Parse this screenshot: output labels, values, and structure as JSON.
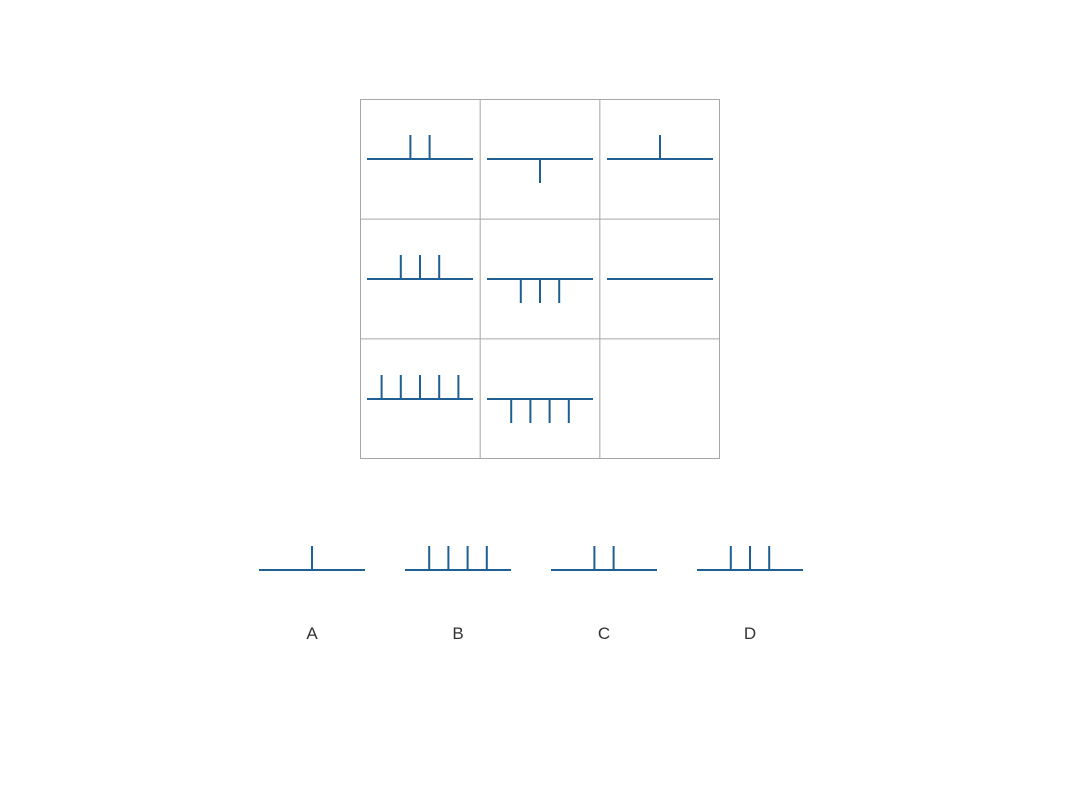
{
  "colors": {
    "stroke": "#1f5f92",
    "grid": "#a6a6a6"
  },
  "grid": {
    "cells": [
      {
        "up": 2,
        "down": 0
      },
      {
        "up": 0,
        "down": 1
      },
      {
        "up": 1,
        "down": 0
      },
      {
        "up": 3,
        "down": 0
      },
      {
        "up": 0,
        "down": 3
      },
      {
        "up": 0,
        "down": 0
      },
      {
        "up": 5,
        "down": 0
      },
      {
        "up": 0,
        "down": 4
      },
      null
    ]
  },
  "options": [
    {
      "label": "A",
      "up": 1,
      "down": 0
    },
    {
      "label": "B",
      "up": 4,
      "down": 0
    },
    {
      "label": "C",
      "up": 2,
      "down": 0
    },
    {
      "label": "D",
      "up": 3,
      "down": 0
    }
  ]
}
